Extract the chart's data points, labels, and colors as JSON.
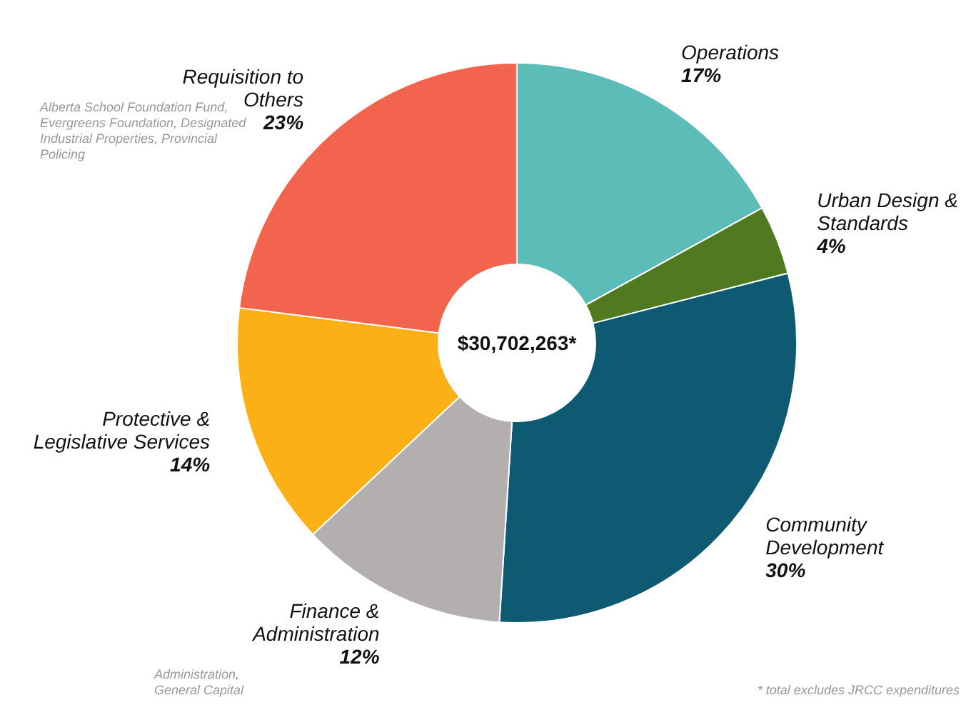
{
  "chart_data": {
    "type": "donut",
    "title": "$30,702,263*",
    "categories": [
      "Operations",
      "Urban Design & Standards",
      "Community Development",
      "Finance & Administration",
      "Protective & Legislative Services",
      "Requisition to Others"
    ],
    "values": [
      17,
      4,
      30,
      12,
      14,
      23
    ],
    "colors": [
      "#5bbcb8",
      "#4f7a1f",
      "#0e5a73",
      "#b3afae",
      "#fbb016",
      "#f2644e"
    ],
    "value_labels": [
      "17%",
      "4%",
      "30%",
      "12%",
      "14%",
      "23%"
    ],
    "annotations": [
      "Alberta School Foundation Fund, Evergreens Foundation, Designated Industrial Properties, Provincial Policing",
      "Administration, General Capital",
      "* total excludes JRCC expenditures"
    ]
  }
}
